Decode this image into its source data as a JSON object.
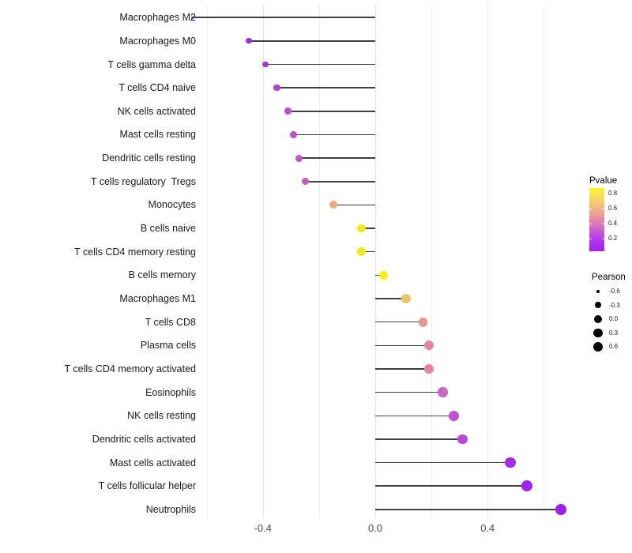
{
  "chart_data": {
    "type": "lollipop",
    "title": "",
    "xlabel": "",
    "ylabel": "",
    "x_axis": {
      "tick_values": [
        -0.4,
        0.0,
        0.4
      ],
      "tick_labels": [
        "-0.4",
        "0.0",
        "0.4"
      ],
      "major_gridlines": [
        -0.4,
        0.0,
        0.4
      ],
      "minor_gridlines": [
        -0.6,
        -0.2,
        0.2,
        0.6
      ],
      "range": [
        -0.62,
        0.69
      ]
    },
    "points": [
      {
        "label": "Macrophages M2",
        "pearson": -0.65,
        "pvalue_est": 0.01,
        "color": "#5e12a8"
      },
      {
        "label": "Macrophages M0",
        "pearson": -0.45,
        "pvalue_est": 0.05,
        "color": "#9932cc"
      },
      {
        "label": "T cells gamma delta",
        "pearson": -0.39,
        "pvalue_est": 0.08,
        "color": "#a138d2"
      },
      {
        "label": "T cells CD4 naive",
        "pearson": -0.35,
        "pvalue_est": 0.11,
        "color": "#ab44d1"
      },
      {
        "label": "NK cells activated",
        "pearson": -0.31,
        "pvalue_est": 0.15,
        "color": "#b84fcb"
      },
      {
        "label": "Mast cells resting",
        "pearson": -0.29,
        "pvalue_est": 0.18,
        "color": "#bf54c7"
      },
      {
        "label": "Dendritic cells resting",
        "pearson": -0.27,
        "pvalue_est": 0.2,
        "color": "#c457c3"
      },
      {
        "label": "T cells regulatory  Tregs",
        "pearson": -0.25,
        "pvalue_est": 0.22,
        "color": "#c75ac3"
      },
      {
        "label": "Monocytes",
        "pearson": -0.15,
        "pvalue_est": 0.55,
        "color": "#efaa7b"
      },
      {
        "label": "B cells naive",
        "pearson": -0.05,
        "pvalue_est": 0.8,
        "color": "#f1e81d"
      },
      {
        "label": "T cells CD4 memory resting",
        "pearson": -0.05,
        "pvalue_est": 0.8,
        "color": "#f1e81d"
      },
      {
        "label": "B cells memory",
        "pearson": 0.03,
        "pvalue_est": 0.85,
        "color": "#f5f00f"
      },
      {
        "label": "Macrophages M1",
        "pearson": 0.11,
        "pvalue_est": 0.62,
        "color": "#f2c46a"
      },
      {
        "label": "T cells CD8",
        "pearson": 0.17,
        "pvalue_est": 0.48,
        "color": "#e9968d"
      },
      {
        "label": "Plasma cells",
        "pearson": 0.19,
        "pvalue_est": 0.44,
        "color": "#e5879b"
      },
      {
        "label": "T cells CD4 memory activated",
        "pearson": 0.19,
        "pvalue_est": 0.44,
        "color": "#e3859c"
      },
      {
        "label": "Eosinophils",
        "pearson": 0.24,
        "pvalue_est": 0.28,
        "color": "#ce63c8"
      },
      {
        "label": "NK cells resting",
        "pearson": 0.28,
        "pvalue_est": 0.22,
        "color": "#c351d2"
      },
      {
        "label": "Dendritic cells activated",
        "pearson": 0.31,
        "pvalue_est": 0.16,
        "color": "#bb48d8"
      },
      {
        "label": "Mast cells activated",
        "pearson": 0.48,
        "pvalue_est": 0.05,
        "color": "#a62be9"
      },
      {
        "label": "T cells follicular helper",
        "pearson": 0.54,
        "pvalue_est": 0.03,
        "color": "#a124ee"
      },
      {
        "label": "Neutrophils",
        "pearson": 0.66,
        "pvalue_est": 0.01,
        "color": "#9d20f0"
      }
    ],
    "legends": {
      "pvalue": {
        "title": "Pvalue",
        "tick_labels": [
          "0.8",
          "0.6",
          "0.4",
          "0.2"
        ],
        "gradient_stops": [
          "#fcf823",
          "#f7d06e",
          "#efa392",
          "#d96fc0",
          "#b53bea",
          "#a020f0"
        ]
      },
      "pearson": {
        "title": "Pearson",
        "items": [
          {
            "label": "-0.6",
            "value": -0.6
          },
          {
            "label": "-0.3",
            "value": -0.3
          },
          {
            "label": "0.0",
            "value": 0.0
          },
          {
            "label": "0.3",
            "value": 0.3
          },
          {
            "label": "0.6",
            "value": 0.6
          }
        ],
        "dot_color": "#000000"
      }
    },
    "colors": {
      "background": "#ffffff",
      "stem": "#3f3f3f",
      "gridline_major": "#e5e5e5",
      "gridline_minor": "#f2f2f2",
      "axis_text": "#4d4d4d",
      "label_text": "#1a1a1a"
    }
  }
}
